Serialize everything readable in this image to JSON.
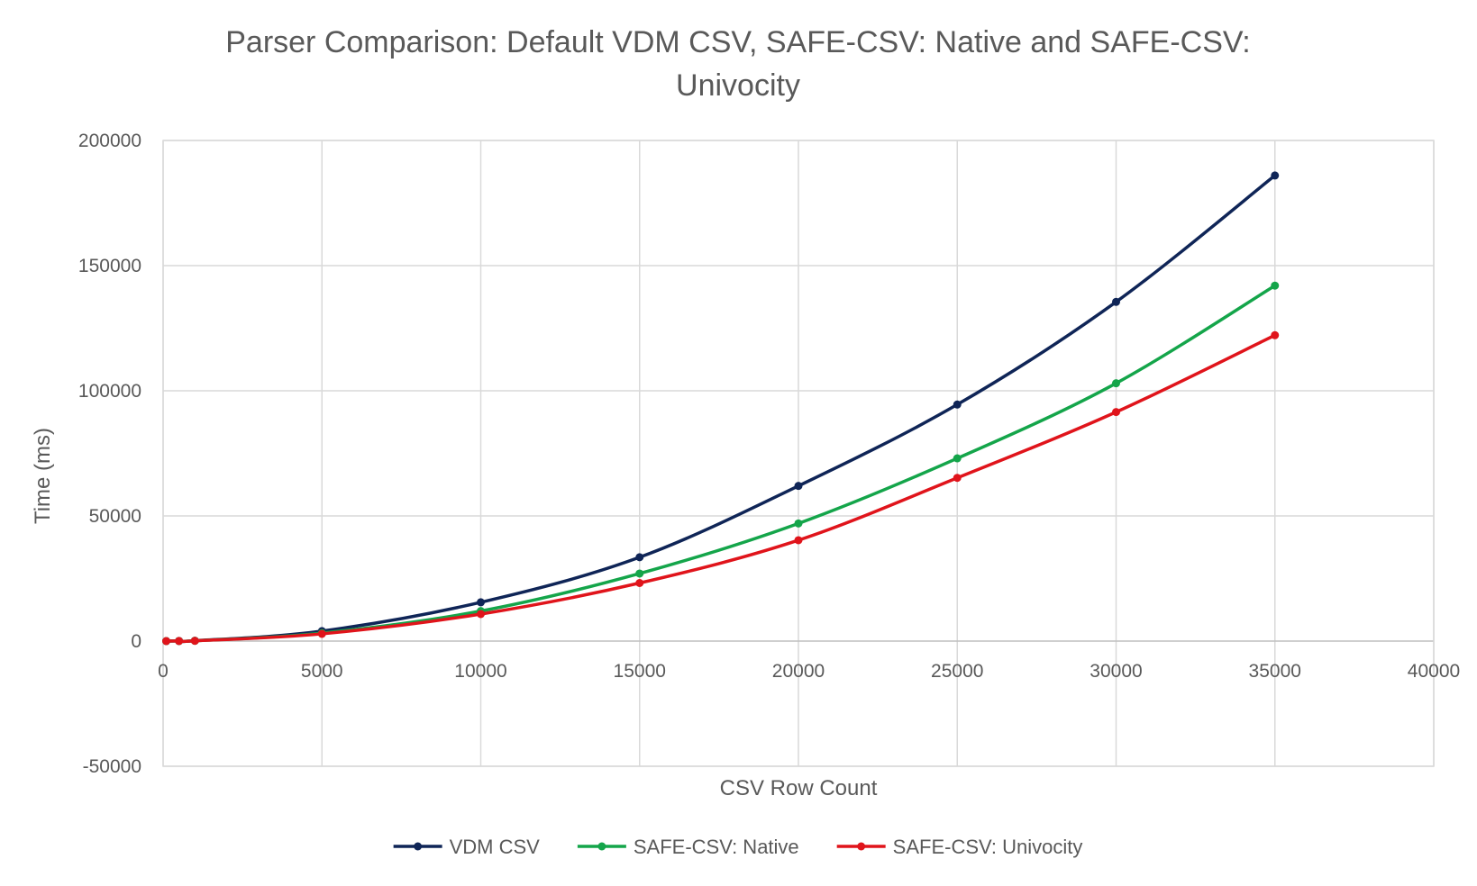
{
  "chart_data": {
    "type": "line",
    "title_line1": "Parser Comparison: Default VDM CSV, SAFE-CSV: Native and SAFE-CSV:",
    "title_line2": "Univocity",
    "xlabel": "CSV Row Count",
    "ylabel": "Time (ms)",
    "xlim": [
      0,
      40000
    ],
    "ylim": [
      -50000,
      200000
    ],
    "x_ticks": [
      0,
      5000,
      10000,
      15000,
      20000,
      25000,
      30000,
      35000,
      40000
    ],
    "y_ticks": [
      -50000,
      0,
      50000,
      100000,
      150000,
      200000
    ],
    "grid": true,
    "legend_position": "bottom",
    "x": [
      100,
      500,
      1000,
      5000,
      10000,
      15000,
      20000,
      25000,
      30000,
      35000
    ],
    "series": [
      {
        "name": "VDM CSV",
        "color": "#0f2557",
        "values": [
          0,
          50,
          150,
          4000,
          15500,
          33500,
          62000,
          94500,
          135500,
          186000
        ]
      },
      {
        "name": "SAFE-CSV: Native",
        "color": "#14a54a",
        "values": [
          0,
          40,
          120,
          3200,
          12000,
          27000,
          47000,
          73000,
          103000,
          142000
        ]
      },
      {
        "name": "SAFE-CSV: Univocity",
        "color": "#e0141b",
        "values": [
          0,
          40,
          110,
          2900,
          10800,
          23200,
          40300,
          65200,
          91500,
          122200
        ]
      }
    ]
  }
}
